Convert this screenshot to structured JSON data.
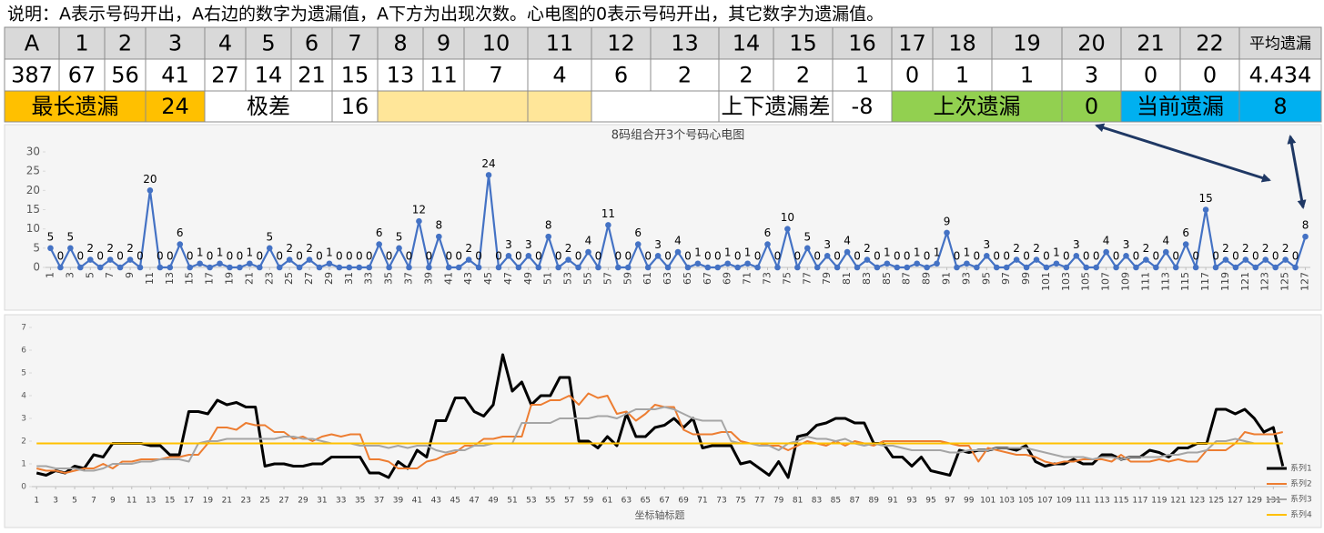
{
  "note": "说明：A表示号码开出，A右边的数字为遗漏值，A下方为出现次数。心电图的0表示号码开出，其它数字为遗漏值。",
  "table": {
    "header": [
      "A",
      "1",
      "2",
      "3",
      "4",
      "5",
      "6",
      "7",
      "8",
      "9",
      "10",
      "11",
      "12",
      "13",
      "14",
      "15",
      "16",
      "17",
      "18",
      "19",
      "20",
      "21",
      "22",
      "平均遗漏"
    ],
    "row": [
      387,
      67,
      56,
      41,
      27,
      14,
      21,
      15,
      13,
      11,
      7,
      4,
      6,
      2,
      2,
      2,
      1,
      0,
      1,
      1,
      3,
      0,
      0,
      4.434
    ],
    "summary": [
      "最长遗漏",
      24,
      "极差",
      16,
      "上下遗漏差",
      -8,
      "上次遗漏",
      0,
      "当前遗漏",
      8
    ]
  },
  "chart_data": [
    {
      "type": "line",
      "title": "8码组合开3个号码心电图",
      "color": "#4472c4",
      "markers": true,
      "data_labels": true,
      "x": [
        1,
        2,
        3,
        4,
        5,
        6,
        7,
        8,
        9,
        10,
        11,
        12,
        13,
        14,
        15,
        16,
        17,
        18,
        19,
        20,
        21,
        22,
        23,
        24,
        25,
        26,
        27,
        28,
        29,
        30,
        31,
        32,
        33,
        34,
        35,
        36,
        37,
        38,
        39,
        40,
        41,
        42,
        43,
        44,
        45,
        46,
        47,
        48,
        49,
        50,
        51,
        52,
        53,
        54,
        55,
        56,
        57,
        58,
        59,
        60,
        61,
        62,
        63,
        64,
        65,
        66,
        67,
        68,
        69,
        70,
        71,
        72,
        73,
        74,
        75,
        76,
        77,
        78,
        79,
        80,
        81,
        82,
        83,
        84,
        85,
        86,
        87,
        88,
        89,
        90,
        91,
        92,
        93,
        94,
        95,
        96,
        97,
        98,
        99,
        100,
        101,
        102,
        103,
        104,
        105,
        106,
        107,
        108,
        109,
        110,
        111,
        112,
        113,
        114,
        115,
        116,
        117,
        118,
        119,
        120,
        121,
        122,
        123,
        124,
        125,
        126,
        127
      ],
      "values": [
        5,
        0,
        5,
        0,
        2,
        0,
        2,
        0,
        2,
        0,
        20,
        0,
        0,
        6,
        0,
        1,
        0,
        1,
        0,
        0,
        1,
        0,
        5,
        0,
        2,
        0,
        2,
        0,
        1,
        0,
        0,
        0,
        0,
        6,
        0,
        5,
        0,
        12,
        0,
        8,
        0,
        0,
        2,
        0,
        24,
        0,
        3,
        0,
        3,
        0,
        8,
        0,
        2,
        0,
        4,
        0,
        11,
        0,
        0,
        6,
        0,
        3,
        0,
        4,
        0,
        1,
        0,
        0,
        1,
        0,
        1,
        0,
        6,
        0,
        10,
        0,
        5,
        0,
        3,
        0,
        4,
        0,
        2,
        0,
        1,
        0,
        0,
        1,
        0,
        1,
        9,
        0,
        1,
        0,
        3,
        0,
        0,
        2,
        0,
        2,
        0,
        1,
        0,
        3,
        0,
        0,
        4,
        0,
        3,
        0,
        2,
        0,
        4,
        0,
        6,
        0,
        15,
        0,
        2,
        0,
        2,
        0,
        2,
        0,
        2,
        0,
        8
      ],
      "xlim": [
        1,
        127
      ],
      "xticks": [
        1,
        3,
        5,
        7,
        9,
        11,
        13,
        15,
        17,
        19,
        21,
        23,
        25,
        27,
        29,
        31,
        33,
        35,
        37,
        39,
        41,
        43,
        45,
        47,
        49,
        51,
        53,
        55,
        57,
        59,
        61,
        63,
        65,
        67,
        69,
        71,
        73,
        75,
        77,
        79,
        81,
        83,
        85,
        87,
        89,
        91,
        93,
        95,
        97,
        99,
        101,
        103,
        105,
        107,
        109,
        111,
        113,
        115,
        117,
        119,
        121,
        123,
        125,
        127
      ],
      "ylim": [
        0,
        30
      ],
      "yticks": [
        0,
        5,
        10,
        15,
        20,
        25,
        30
      ]
    },
    {
      "type": "line",
      "xlabel": "坐标轴标题",
      "legend": "right",
      "x": [
        1,
        2,
        3,
        4,
        5,
        6,
        7,
        8,
        9,
        10,
        11,
        12,
        13,
        14,
        15,
        16,
        17,
        18,
        19,
        20,
        21,
        22,
        23,
        24,
        25,
        26,
        27,
        28,
        29,
        30,
        31,
        32,
        33,
        34,
        35,
        36,
        37,
        38,
        39,
        40,
        41,
        42,
        43,
        44,
        45,
        46,
        47,
        48,
        49,
        50,
        51,
        52,
        53,
        54,
        55,
        56,
        57,
        58,
        59,
        60,
        61,
        62,
        63,
        64,
        65,
        66,
        67,
        68,
        69,
        70,
        71,
        72,
        73,
        74,
        75,
        76,
        77,
        78,
        79,
        80,
        81,
        82,
        83,
        84,
        85,
        86,
        87,
        88,
        89,
        90,
        91,
        92,
        93,
        94,
        95,
        96,
        97,
        98,
        99,
        100,
        101,
        102,
        103,
        104,
        105,
        106,
        107,
        108,
        109,
        110,
        111,
        112,
        113,
        114,
        115,
        116,
        117,
        118,
        119,
        120,
        121,
        122,
        123,
        124,
        125,
        126,
        127,
        128,
        129,
        130,
        131,
        132
      ],
      "series": [
        {
          "name": "系列1",
          "color": "#000000",
          "width": 3,
          "values": [
            0.6,
            0.5,
            0.7,
            0.6,
            0.9,
            0.8,
            1.4,
            1.3,
            1.9,
            1.9,
            1.9,
            1.9,
            1.8,
            1.8,
            1.4,
            1.4,
            3.3,
            3.3,
            3.2,
            3.8,
            3.6,
            3.7,
            3.5,
            3.5,
            0.9,
            1.0,
            1.0,
            0.9,
            0.9,
            1.0,
            1.0,
            1.3,
            1.3,
            1.3,
            1.3,
            0.6,
            0.6,
            0.4,
            1.1,
            0.8,
            1.6,
            1.3,
            2.9,
            2.9,
            3.9,
            3.9,
            3.3,
            3.1,
            3.6,
            5.8,
            4.2,
            4.6,
            3.6,
            4.0,
            4.0,
            4.8,
            4.8,
            2.0,
            2.0,
            1.7,
            2.2,
            1.8,
            3.2,
            2.2,
            2.2,
            2.6,
            2.7,
            3.0,
            2.6,
            3.0,
            1.7,
            1.8,
            1.8,
            1.8,
            1.0,
            1.1,
            0.8,
            0.5,
            1.1,
            0.4,
            2.2,
            2.3,
            2.7,
            2.8,
            3.0,
            3.0,
            2.8,
            2.8,
            1.9,
            1.9,
            1.3,
            1.3,
            0.9,
            1.3,
            0.7,
            0.6,
            0.5,
            1.6,
            1.5,
            1.6,
            1.6,
            1.7,
            1.7,
            1.6,
            1.8,
            1.1,
            0.9,
            1.0,
            1.0,
            1.2,
            1.0,
            1.0,
            1.4,
            1.4,
            1.2,
            1.3,
            1.3,
            1.6,
            1.5,
            1.3,
            1.7,
            1.7,
            1.9,
            1.9,
            3.4,
            3.4,
            3.2,
            3.4,
            3.0,
            2.4,
            2.6,
            0.9
          ]
        },
        {
          "name": "系列2",
          "color": "#ed7d31",
          "width": 2,
          "values": [
            0.8,
            0.7,
            0.7,
            0.6,
            0.7,
            0.8,
            0.8,
            1.0,
            0.8,
            1.1,
            1.1,
            1.2,
            1.2,
            1.2,
            1.3,
            1.3,
            1.4,
            1.4,
            1.9,
            2.6,
            2.6,
            2.5,
            2.8,
            2.7,
            2.7,
            2.4,
            2.4,
            2.1,
            2.2,
            2.0,
            2.2,
            2.3,
            2.2,
            2.3,
            2.3,
            1.2,
            1.2,
            1.1,
            0.8,
            0.8,
            0.8,
            1.1,
            1.2,
            1.4,
            1.5,
            1.8,
            1.8,
            2.1,
            2.1,
            2.2,
            2.2,
            2.2,
            3.6,
            3.6,
            3.8,
            3.8,
            4.0,
            3.6,
            4.1,
            3.9,
            4.0,
            3.2,
            3.3,
            2.9,
            3.2,
            3.6,
            3.5,
            3.5,
            2.5,
            2.3,
            2.3,
            2.3,
            2.4,
            2.4,
            2.0,
            1.9,
            1.9,
            1.8,
            1.8,
            1.6,
            1.8,
            2.0,
            1.9,
            1.8,
            2.0,
            1.8,
            2.0,
            1.9,
            1.8,
            2.0,
            2.0,
            2.0,
            2.0,
            2.0,
            2.0,
            2.0,
            1.9,
            1.8,
            1.8,
            1.1,
            1.7,
            1.6,
            1.5,
            1.4,
            1.4,
            1.3,
            1.1,
            1.0,
            1.1,
            1.1,
            1.2,
            1.2,
            1.2,
            1.1,
            1.4,
            1.1,
            1.1,
            1.1,
            1.2,
            1.1,
            1.2,
            1.1,
            1.1,
            1.6,
            1.6,
            1.6,
            1.9,
            2.4,
            2.3,
            2.3,
            2.3,
            2.4
          ]
        },
        {
          "name": "系列3",
          "color": "#a5a5a5",
          "width": 2,
          "values": [
            0.9,
            0.9,
            0.8,
            0.8,
            0.8,
            0.7,
            0.7,
            0.8,
            1.0,
            1.0,
            1.0,
            1.1,
            1.1,
            1.2,
            1.2,
            1.2,
            1.1,
            1.9,
            2.0,
            2.0,
            2.1,
            2.1,
            2.1,
            2.1,
            2.1,
            2.1,
            2.2,
            2.2,
            2.1,
            2.1,
            2.0,
            1.9,
            1.9,
            1.9,
            1.8,
            1.8,
            1.8,
            1.7,
            1.8,
            1.7,
            1.8,
            1.8,
            1.6,
            1.5,
            1.6,
            1.6,
            1.8,
            1.8,
            1.9,
            1.9,
            1.9,
            2.8,
            2.8,
            2.8,
            2.8,
            3.0,
            3.0,
            3.0,
            3.0,
            3.1,
            3.1,
            3.0,
            3.2,
            3.4,
            3.4,
            3.4,
            3.5,
            3.4,
            3.2,
            3.0,
            2.9,
            2.9,
            2.9,
            2.0,
            1.9,
            1.9,
            1.8,
            1.8,
            1.6,
            1.9,
            2.0,
            2.2,
            2.1,
            2.1,
            2.0,
            2.1,
            1.9,
            1.8,
            1.9,
            1.8,
            1.8,
            1.7,
            1.6,
            1.6,
            1.6,
            1.6,
            1.5,
            1.5,
            1.6,
            1.6,
            1.6,
            1.7,
            1.7,
            1.7,
            1.7,
            1.6,
            1.5,
            1.4,
            1.3,
            1.3,
            1.3,
            1.2,
            1.3,
            1.3,
            1.2,
            1.3,
            1.3,
            1.3,
            1.3,
            1.4,
            1.4,
            1.5,
            1.5,
            1.6,
            2.0,
            2.0,
            2.1,
            2.0,
            1.9,
            1.9,
            1.9,
            1.9
          ]
        },
        {
          "name": "系列4",
          "color": "#ffc000",
          "width": 2,
          "values": [
            1.9,
            1.9,
            1.9,
            1.9,
            1.9,
            1.9,
            1.9,
            1.9,
            1.9,
            1.9,
            1.9,
            1.9,
            1.9,
            1.9,
            1.9,
            1.9,
            1.9,
            1.9,
            1.9,
            1.9,
            1.9,
            1.9,
            1.9,
            1.9,
            1.9,
            1.9,
            1.9,
            1.9,
            1.9,
            1.9,
            1.9,
            1.9,
            1.9,
            1.9,
            1.9,
            1.9,
            1.9,
            1.9,
            1.9,
            1.9,
            1.9,
            1.9,
            1.9,
            1.9,
            1.9,
            1.9,
            1.9,
            1.9,
            1.9,
            1.9,
            1.9,
            1.9,
            1.9,
            1.9,
            1.9,
            1.9,
            1.9,
            1.9,
            1.9,
            1.9,
            1.9,
            1.9,
            1.9,
            1.9,
            1.9,
            1.9,
            1.9,
            1.9,
            1.9,
            1.9,
            1.9,
            1.9,
            1.9,
            1.9,
            1.9,
            1.9,
            1.9,
            1.9,
            1.9,
            1.9,
            1.9,
            1.9,
            1.9,
            1.9,
            1.9,
            1.9,
            1.9,
            1.9,
            1.9,
            1.9,
            1.9,
            1.9,
            1.9,
            1.9,
            1.9,
            1.9,
            1.9,
            1.9,
            1.9,
            1.9,
            1.9,
            1.9,
            1.9,
            1.9,
            1.9,
            1.9,
            1.9,
            1.9,
            1.9,
            1.9,
            1.9,
            1.9,
            1.9,
            1.9,
            1.9,
            1.9,
            1.9,
            1.9,
            1.9,
            1.9,
            1.9,
            1.9,
            1.9,
            1.9,
            1.9,
            1.9,
            1.9,
            1.9,
            1.9,
            1.9,
            1.9,
            1.9
          ]
        }
      ],
      "xlim": [
        1,
        132
      ],
      "xticks": [
        1,
        3,
        5,
        7,
        9,
        11,
        13,
        15,
        17,
        19,
        21,
        23,
        25,
        27,
        29,
        31,
        33,
        35,
        37,
        39,
        41,
        43,
        45,
        47,
        49,
        51,
        53,
        55,
        57,
        59,
        61,
        63,
        65,
        67,
        69,
        71,
        73,
        75,
        77,
        79,
        81,
        83,
        85,
        87,
        89,
        91,
        93,
        95,
        97,
        99,
        101,
        103,
        105,
        107,
        109,
        111,
        113,
        115,
        117,
        119,
        121,
        123,
        125,
        127,
        129,
        131
      ],
      "ylim": [
        0,
        7
      ],
      "yticks": [
        0,
        1,
        2,
        3,
        4,
        5,
        6,
        7
      ]
    }
  ]
}
